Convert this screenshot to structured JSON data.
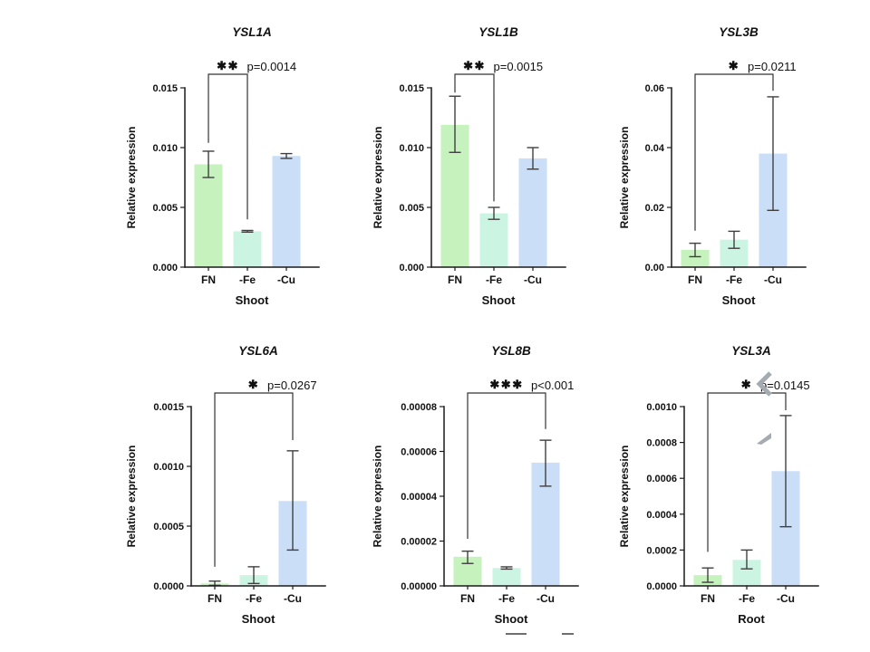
{
  "figure": {
    "background": "#ffffff",
    "ylabel": "Relative expression",
    "categories": [
      "FN",
      "-Fe",
      "-Cu"
    ]
  },
  "colors": {
    "bar_fn": "#c5f2bd",
    "bar_fe": "#cbf4e3",
    "bar_cu": "#cadef7",
    "error": "#3f3f3f",
    "axis": "#1a1a1a",
    "text": "#111111",
    "watermark": "#a6abb1",
    "bottom_mark": "#6f6f6f"
  },
  "chart_data": [
    {
      "type": "bar",
      "title": "YSL1A",
      "xlabel": "Shoot",
      "ylabel": "Relative expression",
      "categories": [
        "FN",
        "-Fe",
        "-Cu"
      ],
      "values": [
        0.0086,
        0.003,
        0.0093
      ],
      "error_low": [
        0.0075,
        0.00293,
        0.0091
      ],
      "error_high": [
        0.0097,
        0.00307,
        0.0095
      ],
      "ylim": [
        0,
        0.015
      ],
      "yticks": [
        0.0,
        0.005,
        0.01,
        0.015
      ],
      "ytick_labels": [
        "0.000",
        "0.005",
        "0.010",
        "0.015"
      ],
      "significance": {
        "stars": "✱✱",
        "p_label": "p=0.0014",
        "from": 0,
        "to": 1,
        "left_drop": 0.0104,
        "right_drop": 0.004
      }
    },
    {
      "type": "bar",
      "title": "YSL1B",
      "xlabel": "Shoot",
      "ylabel": "Relative expression",
      "categories": [
        "FN",
        "-Fe",
        "-Cu"
      ],
      "values": [
        0.0119,
        0.0045,
        0.0091
      ],
      "error_low": [
        0.0096,
        0.004,
        0.0082
      ],
      "error_high": [
        0.0143,
        0.005,
        0.01
      ],
      "ylim": [
        0,
        0.015
      ],
      "yticks": [
        0.0,
        0.005,
        0.01,
        0.015
      ],
      "ytick_labels": [
        "0.000",
        "0.005",
        "0.010",
        "0.015"
      ],
      "significance": {
        "stars": "✱✱",
        "p_label": "p=0.0015",
        "from": 0,
        "to": 1,
        "left_drop": 0.0146,
        "right_drop": 0.0055
      }
    },
    {
      "type": "bar",
      "title": "YSL3B",
      "xlabel": "Shoot",
      "ylabel": "Relative expression",
      "categories": [
        "FN",
        "-Fe",
        "-Cu"
      ],
      "values": [
        0.0058,
        0.0092,
        0.038
      ],
      "error_low": [
        0.0035,
        0.0063,
        0.019
      ],
      "error_high": [
        0.008,
        0.012,
        0.057
      ],
      "ylim": [
        0,
        0.06
      ],
      "yticks": [
        0.0,
        0.02,
        0.04,
        0.06
      ],
      "ytick_labels": [
        "0.00",
        "0.02",
        "0.04",
        "0.06"
      ],
      "significance": {
        "stars": "✱",
        "p_label": "p=0.0211",
        "from": 0,
        "to": 2,
        "left_drop": 0.0122,
        "right_drop": 0.059
      }
    },
    {
      "type": "bar",
      "title": "YSL6A",
      "xlabel": "Shoot",
      "ylabel": "Relative expression",
      "categories": [
        "FN",
        "-Fe",
        "-Cu"
      ],
      "values": [
        2e-05,
        9e-05,
        0.00071
      ],
      "error_low": [
        5e-06,
        2e-05,
        0.0003
      ],
      "error_high": [
        4e-05,
        0.00016,
        0.00113
      ],
      "ylim": [
        0,
        0.0015
      ],
      "yticks": [
        0.0,
        0.0005,
        0.001,
        0.0015
      ],
      "ytick_labels": [
        "0.0000",
        "0.0005",
        "0.0010",
        "0.0015"
      ],
      "significance": {
        "stars": "✱",
        "p_label": "p=0.0267",
        "from": 0,
        "to": 2,
        "left_drop": 0.00016,
        "right_drop": 0.00122
      }
    },
    {
      "type": "bar",
      "title": "YSL8B",
      "xlabel": "Shoot",
      "ylabel": "Relative expression",
      "categories": [
        "FN",
        "-Fe",
        "-Cu"
      ],
      "values": [
        1.3e-05,
        8e-06,
        5.5e-05
      ],
      "error_low": [
        1e-05,
        7.5e-06,
        4.45e-05
      ],
      "error_high": [
        1.55e-05,
        8.5e-06,
        6.5e-05
      ],
      "ylim": [
        0,
        8e-05
      ],
      "yticks": [
        0.0,
        2e-05,
        4e-05,
        6e-05,
        8e-05
      ],
      "ytick_labels": [
        "0.00000",
        "0.00002",
        "0.00004",
        "0.00006",
        "0.00008"
      ],
      "significance": {
        "stars": "✱✱✱",
        "p_label": "p<0.001",
        "from": 0,
        "to": 2,
        "left_drop": 2.1e-05,
        "right_drop": 7e-05
      }
    },
    {
      "type": "bar",
      "title": "YSL3A",
      "xlabel": "Root",
      "ylabel": "Relative expression",
      "categories": [
        "FN",
        "-Fe",
        "-Cu"
      ],
      "values": [
        6e-05,
        0.000145,
        0.00064
      ],
      "error_low": [
        2e-05,
        9.5e-05,
        0.00033
      ],
      "error_high": [
        0.0001,
        0.0002,
        0.00095
      ],
      "ylim": [
        0,
        0.001
      ],
      "yticks": [
        0.0,
        0.0002,
        0.0004,
        0.0006,
        0.0008,
        0.001
      ],
      "ytick_labels": [
        "0.0000",
        "0.0002",
        "0.0004",
        "0.0006",
        "0.0008",
        "0.0010"
      ],
      "significance": {
        "stars": "✱",
        "p_label": "p=0.0145",
        "from": 0,
        "to": 2,
        "left_drop": 0.00019,
        "right_drop": 0.00098
      }
    }
  ],
  "layout": {
    "panel_cols": [
      112,
      384,
      656
    ],
    "panel_rows": [
      10,
      362
    ]
  }
}
